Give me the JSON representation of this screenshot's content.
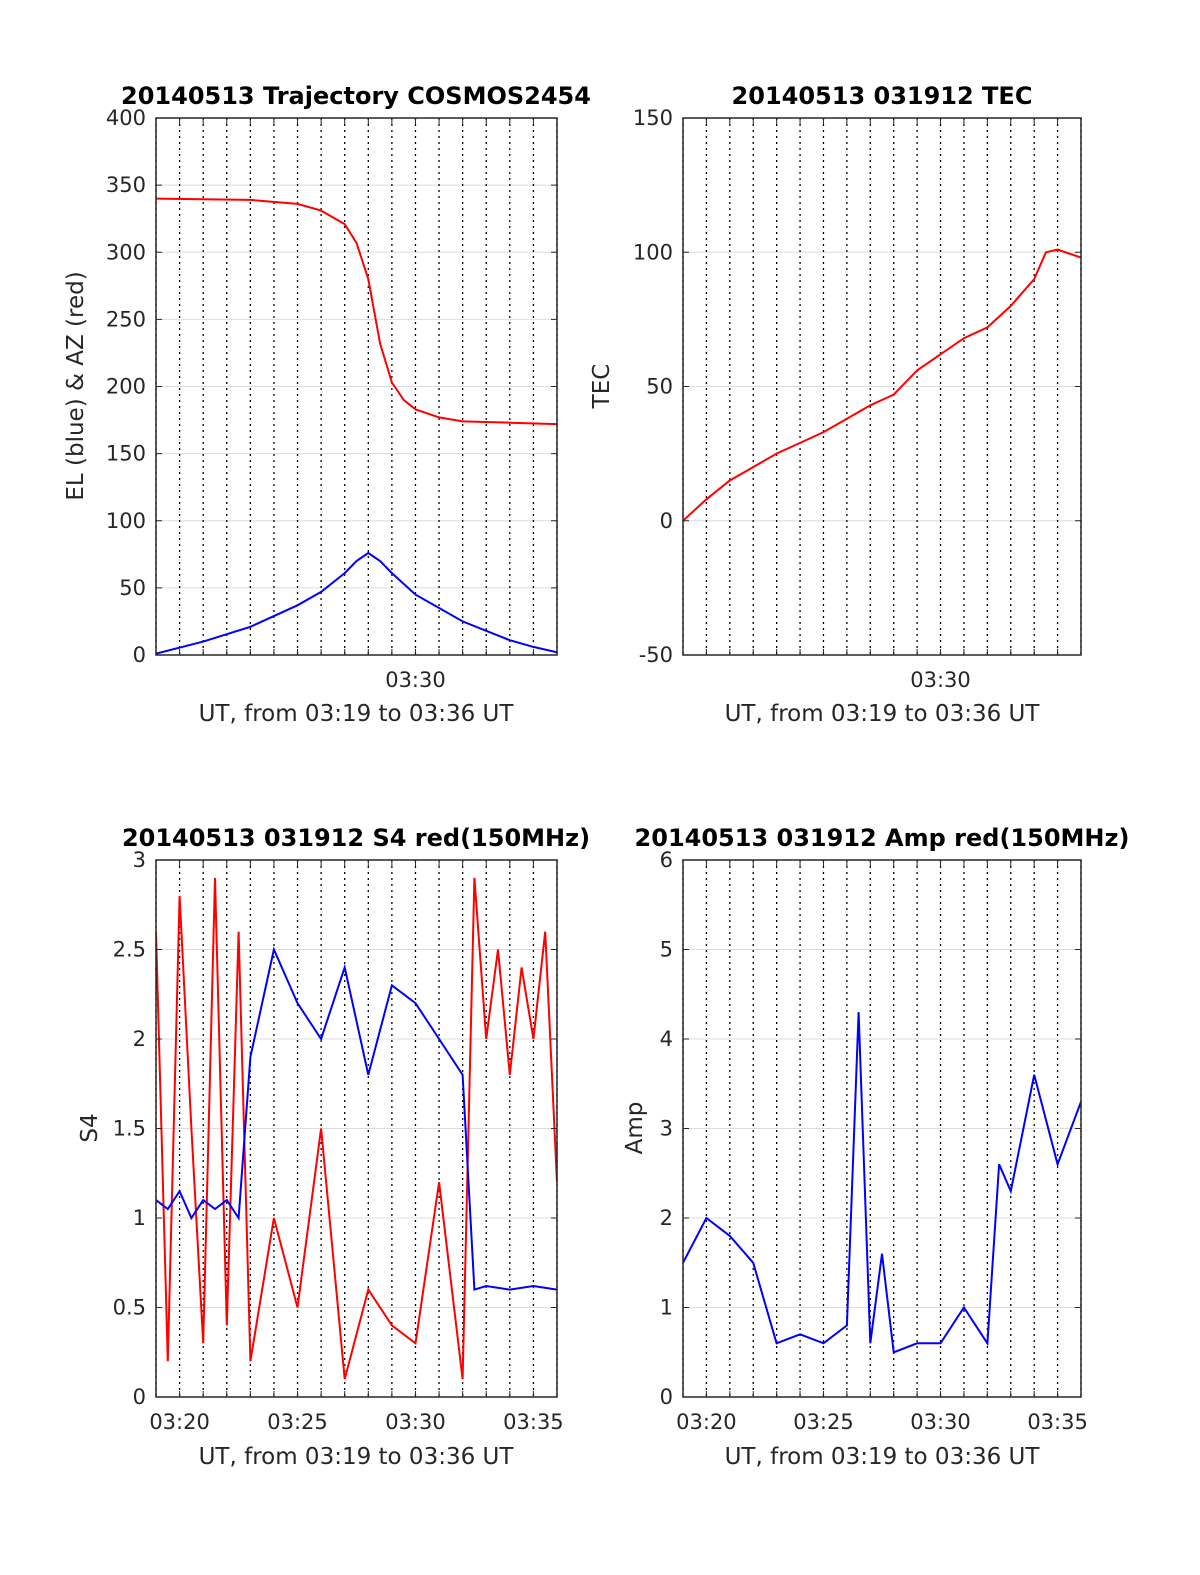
{
  "chart_data": [
    {
      "type": "line",
      "title": "20140513 Trajectory COSMOS2454",
      "xlabel": "UT, from 03:19 to 03:36 UT",
      "ylabel": "EL (blue) & AZ (red)",
      "xlim": [
        "03:19",
        "03:36"
      ],
      "ylim": [
        0,
        400
      ],
      "yticks": [
        0,
        50,
        100,
        150,
        200,
        250,
        300,
        350,
        400
      ],
      "xtick_labels": [
        {
          "x": "03:30",
          "label": "03:30"
        }
      ],
      "grid": true,
      "series": [
        {
          "color": "#ff0000",
          "x": [
            "03:19",
            "03:23",
            "03:25",
            "03:26",
            "03:27",
            "03:27:30",
            "03:28",
            "03:28:15",
            "03:28:30",
            "03:29",
            "03:29:30",
            "03:30",
            "03:31",
            "03:32",
            "03:34",
            "03:36"
          ],
          "values": [
            340,
            339,
            336,
            331,
            321,
            307,
            280,
            256,
            232,
            203,
            190,
            183,
            177,
            174,
            173,
            172
          ]
        },
        {
          "color": "#0000ff",
          "x": [
            "03:19",
            "03:21",
            "03:23",
            "03:25",
            "03:26",
            "03:27",
            "03:27:30",
            "03:28",
            "03:28:30",
            "03:29",
            "03:30",
            "03:31",
            "03:32",
            "03:33",
            "03:34",
            "03:35",
            "03:36"
          ],
          "values": [
            1,
            10,
            21,
            37,
            47,
            61,
            70,
            76,
            70,
            61,
            45,
            35,
            25,
            18,
            11,
            6,
            2
          ]
        }
      ]
    },
    {
      "type": "line",
      "title": "20140513 031912 TEC",
      "xlabel": "UT, from 03:19 to 03:36 UT",
      "ylabel": "TEC",
      "xlim": [
        "03:19",
        "03:36"
      ],
      "ylim": [
        -50,
        150
      ],
      "yticks": [
        -50,
        0,
        50,
        100,
        150
      ],
      "xtick_labels": [
        {
          "x": "03:30",
          "label": "03:30"
        }
      ],
      "grid": true,
      "series": [
        {
          "color": "#ff0000",
          "x": [
            "03:19",
            "03:20",
            "03:21",
            "03:22",
            "03:23",
            "03:24",
            "03:25",
            "03:26",
            "03:27",
            "03:28",
            "03:29",
            "03:30",
            "03:31",
            "03:32",
            "03:33",
            "03:34",
            "03:34:30",
            "03:35",
            "03:36"
          ],
          "values": [
            0,
            8,
            15,
            20,
            25,
            29,
            33,
            38,
            43,
            47,
            56,
            62,
            68,
            72,
            80,
            90,
            100,
            101,
            98
          ]
        }
      ]
    },
    {
      "type": "line",
      "title": "20140513 031912 S4 red(150MHz)",
      "xlabel": "UT, from 03:19 to 03:36 UT",
      "ylabel": "S4",
      "xlim": [
        "03:19",
        "03:36"
      ],
      "ylim": [
        0,
        3
      ],
      "yticks": [
        0,
        0.5,
        1,
        1.5,
        2,
        2.5,
        3
      ],
      "xtick_labels": [
        {
          "x": "03:20",
          "label": "03:20"
        },
        {
          "x": "03:25",
          "label": "03:25"
        },
        {
          "x": "03:30",
          "label": "03:30"
        },
        {
          "x": "03:35",
          "label": "03:35"
        }
      ],
      "grid": true,
      "series": [
        {
          "color": "#ff0000",
          "x": [
            "03:19",
            "03:19:30",
            "03:20",
            "03:20:30",
            "03:21",
            "03:21:30",
            "03:22",
            "03:22:30",
            "03:23",
            "03:24",
            "03:25",
            "03:26",
            "03:27",
            "03:28",
            "03:29",
            "03:30",
            "03:31",
            "03:32",
            "03:32:30",
            "03:33",
            "03:33:30",
            "03:34",
            "03:34:30",
            "03:35",
            "03:35:30",
            "03:36"
          ],
          "values": [
            2.6,
            0.2,
            2.8,
            1.5,
            0.3,
            2.9,
            0.4,
            2.6,
            0.2,
            1.0,
            0.5,
            1.5,
            0.1,
            0.6,
            0.4,
            0.3,
            1.2,
            0.1,
            2.9,
            2.0,
            2.5,
            1.8,
            2.4,
            2.0,
            2.6,
            1.2
          ]
        },
        {
          "color": "#0000ff",
          "x": [
            "03:19",
            "03:19:30",
            "03:20",
            "03:20:30",
            "03:21",
            "03:21:30",
            "03:22",
            "03:22:30",
            "03:23",
            "03:24",
            "03:25",
            "03:26",
            "03:27",
            "03:28",
            "03:29",
            "03:30",
            "03:31",
            "03:32",
            "03:32:30",
            "03:33",
            "03:34",
            "03:35",
            "03:36"
          ],
          "values": [
            1.1,
            1.05,
            1.15,
            1.0,
            1.1,
            1.05,
            1.1,
            1.0,
            1.9,
            2.5,
            2.2,
            2.0,
            2.4,
            1.8,
            2.3,
            2.2,
            2.0,
            1.8,
            0.6,
            0.62,
            0.6,
            0.62,
            0.6
          ]
        }
      ]
    },
    {
      "type": "line",
      "title": "20140513 031912 Amp red(150MHz)",
      "xlabel": "UT, from 03:19 to 03:36 UT",
      "ylabel": "Amp",
      "xlim": [
        "03:19",
        "03:36"
      ],
      "ylim": [
        0,
        6
      ],
      "yticks": [
        0,
        1,
        2,
        3,
        4,
        5,
        6
      ],
      "xtick_labels": [
        {
          "x": "03:20",
          "label": "03:20"
        },
        {
          "x": "03:25",
          "label": "03:25"
        },
        {
          "x": "03:30",
          "label": "03:30"
        },
        {
          "x": "03:35",
          "label": "03:35"
        }
      ],
      "grid": true,
      "series": [
        {
          "color": "#0000ff",
          "x": [
            "03:19",
            "03:20",
            "03:21",
            "03:22",
            "03:23",
            "03:24",
            "03:25",
            "03:26",
            "03:26:30",
            "03:27",
            "03:27:30",
            "03:28",
            "03:29",
            "03:30",
            "03:31",
            "03:32",
            "03:32:30",
            "03:33",
            "03:34",
            "03:35",
            "03:36"
          ],
          "values": [
            1.5,
            2.0,
            1.8,
            1.5,
            0.6,
            0.7,
            0.6,
            0.8,
            4.3,
            0.6,
            1.6,
            0.5,
            0.6,
            0.6,
            1.0,
            0.6,
            2.6,
            2.3,
            3.6,
            2.6,
            3.3
          ]
        }
      ]
    }
  ]
}
